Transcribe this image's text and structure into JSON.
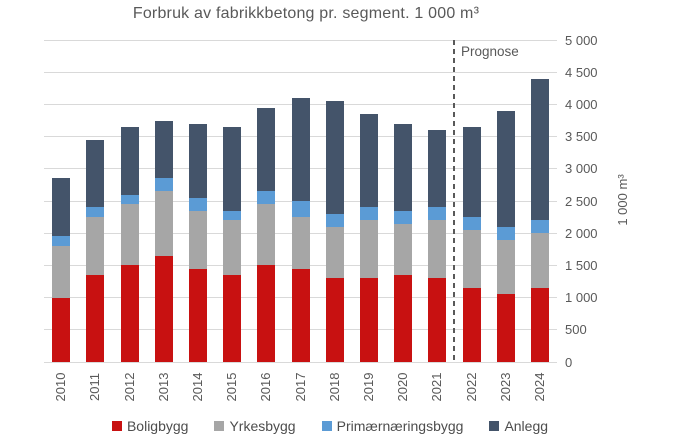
{
  "chart_data": {
    "type": "bar",
    "stacked": true,
    "title": "Forbruk av fabrikkbetong pr. segment. 1 000 m³",
    "ylabel": "1 000 m³",
    "ylim": [
      0,
      5000
    ],
    "ytick_step": 500,
    "grid": true,
    "legend_position": "bottom",
    "forecast_label": "Prognose",
    "forecast_start_category": "2022",
    "categories": [
      "2010",
      "2011",
      "2012",
      "2013",
      "2014",
      "2015",
      "2016",
      "2017",
      "2018",
      "2019",
      "2020",
      "2021",
      "2022",
      "2023",
      "2024"
    ],
    "series": [
      {
        "name": "Boligbygg",
        "color": "#c81111",
        "values": [
          1000,
          1350,
          1500,
          1650,
          1450,
          1350,
          1500,
          1450,
          1300,
          1300,
          1350,
          1300,
          1150,
          1050,
          1150
        ]
      },
      {
        "name": "Yrkesbygg",
        "color": "#a6a6a6",
        "values": [
          800,
          900,
          950,
          1000,
          900,
          850,
          950,
          800,
          800,
          900,
          800,
          900,
          900,
          850,
          850
        ]
      },
      {
        "name": "Primærnæringsbygg",
        "color": "#5b9bd5",
        "values": [
          150,
          150,
          150,
          200,
          200,
          150,
          200,
          250,
          200,
          200,
          200,
          200,
          200,
          200,
          200
        ]
      },
      {
        "name": "Anlegg",
        "color": "#44546a",
        "values": [
          900,
          1050,
          1050,
          900,
          1150,
          1300,
          1300,
          1600,
          1750,
          1450,
          1350,
          1200,
          1400,
          1800,
          2200
        ]
      }
    ]
  },
  "y_axis": {
    "tick_labels": [
      "5 000",
      "4 500",
      "4 000",
      "3 500",
      "3 000",
      "2 500",
      "2 000",
      "1 500",
      "1 000",
      "500",
      "0"
    ]
  },
  "colors": {
    "gridline": "#d9d9d9",
    "text": "#595959",
    "forecast_line": "#595959"
  }
}
